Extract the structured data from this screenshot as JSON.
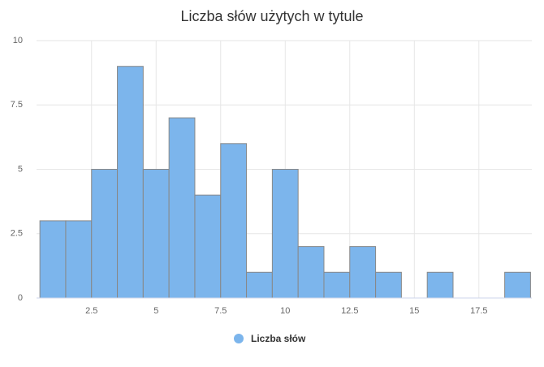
{
  "chart_data": {
    "type": "histogram",
    "title": "Liczba słów użytych w tytule",
    "series": [
      {
        "name": "Liczba słów",
        "color": "#7cb5ec",
        "bins": [
          0.5,
          1.5,
          2.5,
          3.5,
          4.5,
          5.5,
          6.5,
          7.5,
          8.5,
          9.5,
          10.5,
          11.5,
          12.5,
          13.5,
          14.5,
          15.5,
          16.5,
          17.5,
          18.5,
          19.5
        ],
        "values": [
          3,
          3,
          5,
          9,
          5,
          7,
          4,
          6,
          1,
          5,
          2,
          1,
          2,
          1,
          0,
          1,
          0,
          0,
          1
        ]
      }
    ],
    "xlim": [
      0.37,
      19.55
    ],
    "xticks": [
      2.5,
      5,
      7.5,
      10,
      12.5,
      15,
      17.5
    ],
    "ylim": [
      0,
      10
    ],
    "yticks": [
      0,
      2.5,
      5,
      7.5,
      10
    ],
    "grid": true
  }
}
